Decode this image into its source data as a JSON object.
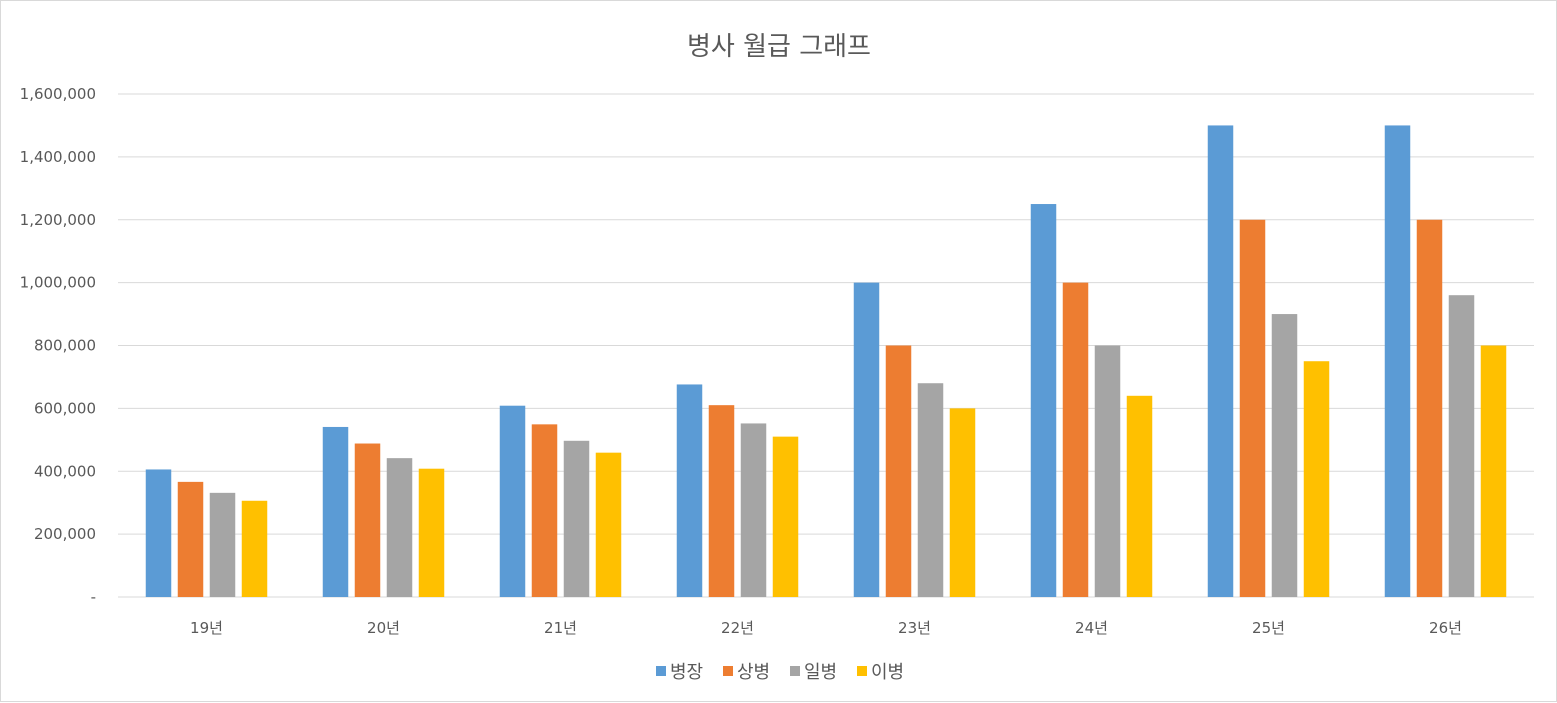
{
  "chart_data": {
    "type": "bar",
    "title": "병사 월급 그래프",
    "categories": [
      "19년",
      "20년",
      "21년",
      "22년",
      "23년",
      "24년",
      "25년",
      "26년"
    ],
    "series": [
      {
        "name": "병장",
        "color": "#5b9bd5",
        "values": [
          405700,
          540900,
          608500,
          676100,
          1000000,
          1250000,
          1500000,
          1500000
        ]
      },
      {
        "name": "상병",
        "color": "#ed7d31",
        "values": [
          366200,
          488200,
          549200,
          610200,
          800000,
          1000000,
          1200000,
          1200000
        ]
      },
      {
        "name": "일병",
        "color": "#a5a5a5",
        "values": [
          331300,
          441700,
          496900,
          552100,
          680000,
          800000,
          900000,
          960000
        ]
      },
      {
        "name": "이병",
        "color": "#ffc000",
        "values": [
          306100,
          408100,
          459100,
          510100,
          600000,
          640000,
          750000,
          800000
        ]
      }
    ],
    "ylim": [
      0,
      1600000
    ],
    "yticks": [
      "-",
      "200,000",
      "400,000",
      "600,000",
      "800,000",
      "1,000,000",
      "1,200,000",
      "1,400,000",
      "1,600,000"
    ],
    "grid": true,
    "legend": "bottom-center",
    "xlabel": "",
    "ylabel": ""
  }
}
